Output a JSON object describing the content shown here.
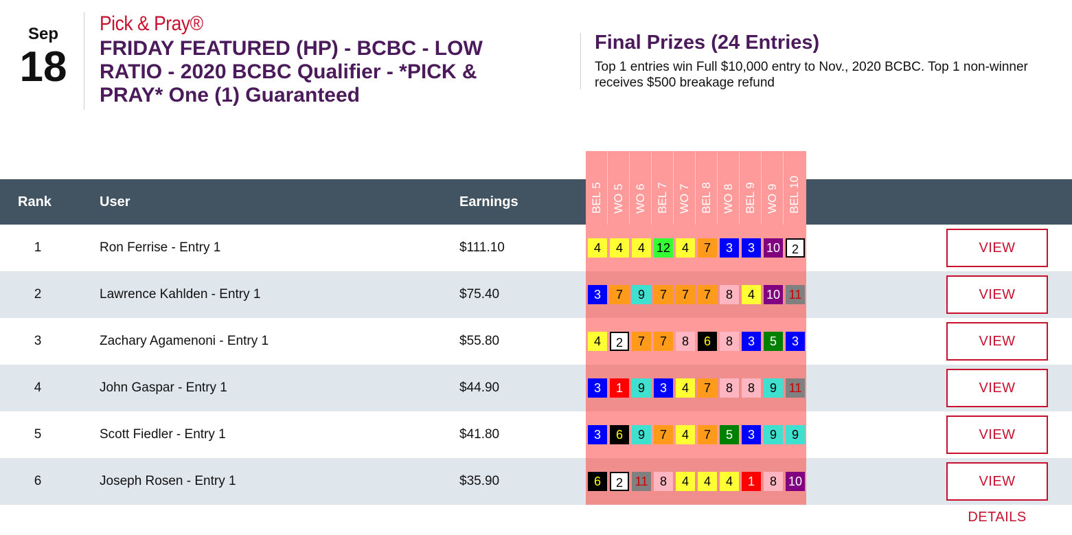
{
  "date": {
    "month": "Sep",
    "day": "18"
  },
  "brand": "Pick & Pray®",
  "contest_title": "FRIDAY FEATURED (HP) - BCBC - LOW RATIO - 2020 BCBC Qualifier - *PICK & PRAY* One (1) Guaranteed",
  "prizes": {
    "title": "Final Prizes (24 Entries)",
    "description": "Top 1 entries win Full $10,000 entry to Nov., 2020 BCBC. Top 1 non-winner receives $500 breakage refund"
  },
  "table": {
    "headers": {
      "rank": "Rank",
      "user": "User",
      "earnings": "Earnings"
    },
    "tracks": [
      "BEL 5",
      "WO 5",
      "WO 6",
      "BEL 7",
      "WO 7",
      "BEL 8",
      "WO 8",
      "BEL 9",
      "WO 9",
      "BEL 10"
    ],
    "view_details_label": "VIEW DETAILS",
    "rows": [
      {
        "rank": "1",
        "user": "Ron Ferrise - Entry 1",
        "earnings": "$111.10",
        "picks": [
          "4",
          "4",
          "4",
          "12",
          "4",
          "7",
          "3",
          "3",
          "10",
          "2"
        ]
      },
      {
        "rank": "2",
        "user": "Lawrence Kahlden - Entry 1",
        "earnings": "$75.40",
        "picks": [
          "3",
          "7",
          "9",
          "7",
          "7",
          "7",
          "8",
          "4",
          "10",
          "11"
        ]
      },
      {
        "rank": "3",
        "user": "Zachary Agamenoni - Entry 1",
        "earnings": "$55.80",
        "picks": [
          "4",
          "2",
          "7",
          "7",
          "8",
          "6",
          "8",
          "3",
          "5",
          "3"
        ]
      },
      {
        "rank": "4",
        "user": "John Gaspar - Entry 1",
        "earnings": "$44.90",
        "picks": [
          "3",
          "1",
          "9",
          "3",
          "4",
          "7",
          "8",
          "8",
          "9",
          "11"
        ]
      },
      {
        "rank": "5",
        "user": "Scott Fiedler - Entry 1",
        "earnings": "$41.80",
        "picks": [
          "3",
          "6",
          "9",
          "7",
          "4",
          "7",
          "5",
          "3",
          "9",
          "9"
        ]
      },
      {
        "rank": "6",
        "user": "Joseph Rosen - Entry 1",
        "earnings": "$35.90",
        "picks": [
          "6",
          "2",
          "11",
          "8",
          "4",
          "4",
          "4",
          "1",
          "8",
          "10"
        ]
      }
    ]
  },
  "saddle_colors": {
    "1": {
      "bg": "#ff0000",
      "fg": "#ffffff"
    },
    "2": {
      "bg": "#ffffff",
      "fg": "#000000",
      "border": "#000000"
    },
    "3": {
      "bg": "#0000ff",
      "fg": "#ffffff"
    },
    "4": {
      "bg": "#ffff33",
      "fg": "#000000"
    },
    "5": {
      "bg": "#008000",
      "fg": "#ffffff"
    },
    "6": {
      "bg": "#000000",
      "fg": "#ffff00"
    },
    "7": {
      "bg": "#ff9a1a",
      "fg": "#000000"
    },
    "8": {
      "bg": "#ffb6c1",
      "fg": "#000000"
    },
    "9": {
      "bg": "#40e0d0",
      "fg": "#000000"
    },
    "10": {
      "bg": "#800080",
      "fg": "#ffffff"
    },
    "11": {
      "bg": "#808080",
      "fg": "#cc0000"
    },
    "12": {
      "bg": "#33ff33",
      "fg": "#000000"
    }
  }
}
